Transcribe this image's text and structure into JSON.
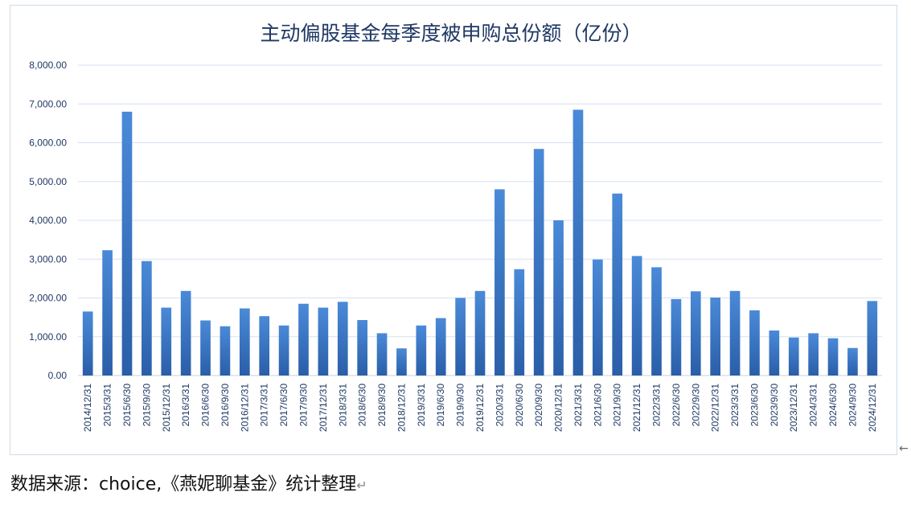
{
  "chart_data": {
    "type": "bar",
    "title": "主动偏股基金每季度被申购总份额（亿份）",
    "xlabel": "",
    "ylabel": "",
    "ylim": [
      0,
      8000
    ],
    "yticks": [
      "0.00",
      "1,000.00",
      "2,000.00",
      "3,000.00",
      "4,000.00",
      "5,000.00",
      "6,000.00",
      "7,000.00",
      "8,000.00"
    ],
    "grid": true,
    "legend": "none",
    "bar_color_top": "#4a8ad8",
    "bar_color_bottom": "#2a5ea8",
    "categories": [
      "2014/12/31",
      "2015/3/31",
      "2015/6/30",
      "2015/9/30",
      "2015/12/31",
      "2016/3/31",
      "2016/6/30",
      "2016/9/30",
      "2016/12/31",
      "2017/3/31",
      "2017/6/30",
      "2017/9/30",
      "2017/12/31",
      "2018/3/31",
      "2018/6/30",
      "2018/9/30",
      "2018/12/31",
      "2019/3/31",
      "2019/6/30",
      "2019/9/30",
      "2019/12/31",
      "2020/3/31",
      "2020/6/30",
      "2020/9/30",
      "2020/12/31",
      "2021/3/31",
      "2021/6/30",
      "2021/9/30",
      "2021/12/31",
      "2022/3/31",
      "2022/6/30",
      "2022/9/30",
      "2022/12/31",
      "2023/3/31",
      "2023/6/30",
      "2023/9/30",
      "2023/12/31",
      "2024/3/31",
      "2024/6/30",
      "2024/9/30",
      "2024/12/31"
    ],
    "values": [
      1650,
      3230,
      6800,
      2950,
      1750,
      2180,
      1420,
      1270,
      1730,
      1530,
      1290,
      1850,
      1750,
      1900,
      1430,
      1090,
      700,
      1290,
      1480,
      2000,
      2180,
      4800,
      2740,
      5840,
      4000,
      6850,
      2990,
      4690,
      3080,
      2790,
      1970,
      2170,
      2010,
      2180,
      1680,
      1160,
      980,
      1090,
      960,
      710,
      1920
    ]
  },
  "footer": {
    "source": "数据来源：choice,《燕妮聊基金》统计整理"
  }
}
